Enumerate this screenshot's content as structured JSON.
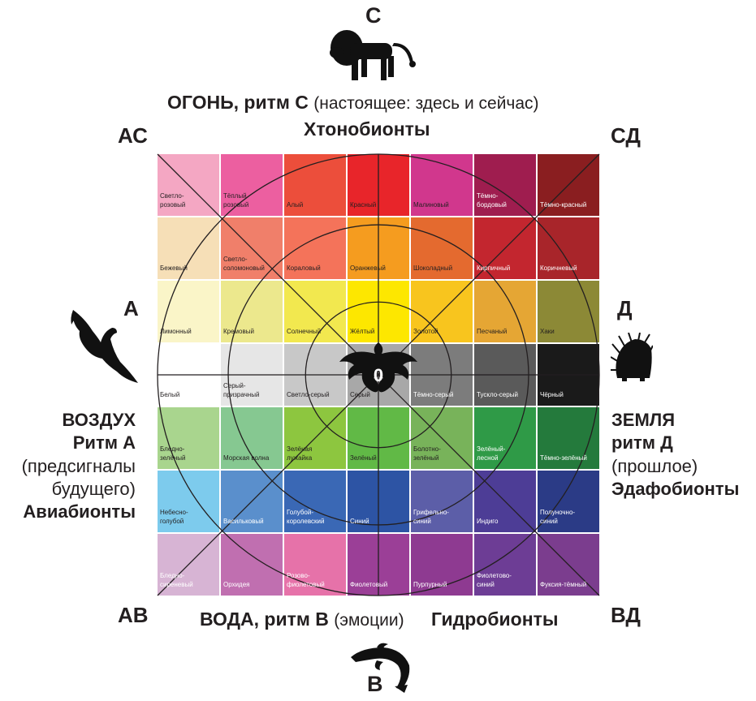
{
  "directions": {
    "north": "С",
    "south": "В",
    "west": "А",
    "east": "Д",
    "north_west": "АС",
    "north_east": "СД",
    "south_west": "АВ",
    "south_east": "ВД"
  },
  "top": {
    "title_bold": "ОГОНЬ, ритм С",
    "title_rest": "(настоящее: здесь и сейчас)",
    "subtitle": "Хтонобионты"
  },
  "left": {
    "line1": "ВОЗДУХ",
    "line2": "Ритм А",
    "line3": "(предсигналы",
    "line4": "будущего)",
    "line5": "Авиабионты"
  },
  "right": {
    "line1": "ЗЕМЛЯ",
    "line2": "ритм Д",
    "line3": "(прошлое)",
    "line4": "Эдафобионты"
  },
  "bottom": {
    "title_bold": "ВОДА, ритм В",
    "title_rest": "(эмоции)",
    "extra": "Гидробионты"
  },
  "center_label": "0",
  "icons": {
    "north": "lion-icon",
    "south": "dolphin-icon",
    "west": "eagle-icon",
    "east": "porcupine-icon",
    "center": "dragon-icon"
  },
  "grid": {
    "rows": [
      [
        {
          "label": "Светло-\nрозовый",
          "color": "#f4a7c3"
        },
        {
          "label": "Тёплый\nрозовый",
          "color": "#ec5fa0"
        },
        {
          "label": "Алый",
          "color": "#ec4e3b"
        },
        {
          "label": "Красный",
          "color": "#e8252a"
        },
        {
          "label": "Малиновый",
          "color": "#d1378d"
        },
        {
          "label": "Тёмно-\nбордовый",
          "color": "#9f1d4f"
        },
        {
          "label": "Тёмно-красный",
          "color": "#8a1e20"
        }
      ],
      [
        {
          "label": "Бежевый",
          "color": "#f6dfb7"
        },
        {
          "label": "Светло-\nсоломоновый",
          "color": "#f07f6a"
        },
        {
          "label": "Кораловый",
          "color": "#f4735a"
        },
        {
          "label": "Оранжевый",
          "color": "#f59c1f"
        },
        {
          "label": "Шоколадный",
          "color": "#e46a2f"
        },
        {
          "label": "Кирпичный",
          "color": "#c3262f"
        },
        {
          "label": "Коричневый",
          "color": "#a8252a"
        }
      ],
      [
        {
          "label": "Лимонный",
          "color": "#faf5c8"
        },
        {
          "label": "Кремовый",
          "color": "#ece88d"
        },
        {
          "label": "Солнечный",
          "color": "#f2e84f"
        },
        {
          "label": "Жёлтый",
          "color": "#fde700"
        },
        {
          "label": "Золотой",
          "color": "#f8c51e"
        },
        {
          "label": "Песчаный",
          "color": "#e5a634"
        },
        {
          "label": "Хаки",
          "color": "#8c8936"
        }
      ],
      [
        {
          "label": "Белый",
          "color": "#ffffff"
        },
        {
          "label": "Серый-\nпризрачный",
          "color": "#e6e6e6"
        },
        {
          "label": "Светло-серый",
          "color": "#c8c8c8"
        },
        {
          "label": "Серый",
          "color": "#a8a8a8"
        },
        {
          "label": "Тёмно-серый",
          "color": "#7c7c7c"
        },
        {
          "label": "Тускло-серый",
          "color": "#5a5a5a"
        },
        {
          "label": "Чёрный",
          "color": "#1a1a1a"
        }
      ],
      [
        {
          "label": "Бледно-\nзелёный",
          "color": "#a9d58e"
        },
        {
          "label": "Морская волна",
          "color": "#86c891"
        },
        {
          "label": "Зелёная\nлужайка",
          "color": "#8dc63f"
        },
        {
          "label": "Зелёный",
          "color": "#61b946"
        },
        {
          "label": "Болотно-\nзелёный",
          "color": "#78b35a"
        },
        {
          "label": "Зелёный-\nлесной",
          "color": "#2f9a47"
        },
        {
          "label": "Тёмно-зелёный",
          "color": "#247a3c"
        }
      ],
      [
        {
          "label": "Небесно-\nголубой",
          "color": "#7dcbed"
        },
        {
          "label": "Васильковый",
          "color": "#5a8fcc"
        },
        {
          "label": "Голубой-\nкоролевский",
          "color": "#3a68b5"
        },
        {
          "label": "Синий",
          "color": "#2d54a4"
        },
        {
          "label": "Грифельно-\nсиний",
          "color": "#5c5ea8"
        },
        {
          "label": "Индиго",
          "color": "#4d3d96"
        },
        {
          "label": "Полуночно-\nсиний",
          "color": "#2b3b86"
        }
      ],
      [
        {
          "label": "Бледно-\nсиреневый",
          "color": "#d7b4d4"
        },
        {
          "label": "Орхидея",
          "color": "#c06fb0"
        },
        {
          "label": "Розово-\nфиолетовый",
          "color": "#e672a9"
        },
        {
          "label": "Фиолетовый",
          "color": "#9b3f97"
        },
        {
          "label": "Пурпурный",
          "color": "#8e3a91"
        },
        {
          "label": "Фиолетово-\nсиний",
          "color": "#6d3d95"
        },
        {
          "label": "Фуксия-тёмный",
          "color": "#7b3d8e"
        }
      ]
    ]
  }
}
